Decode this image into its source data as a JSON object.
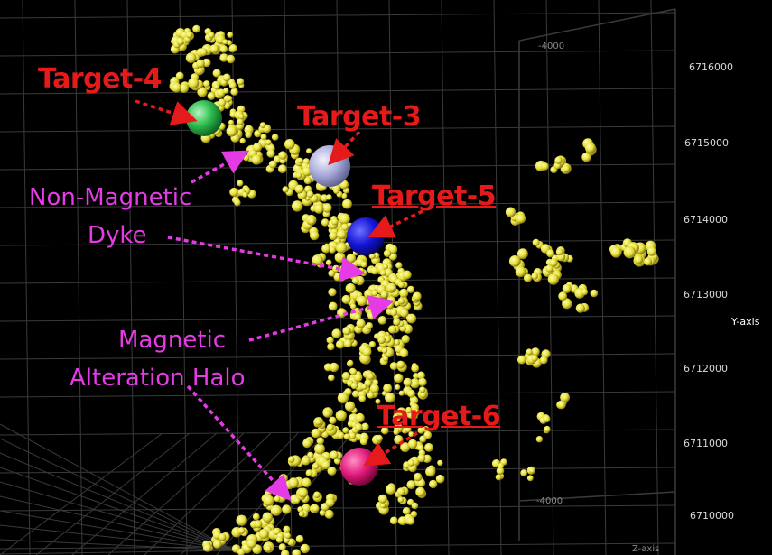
{
  "labels": {
    "target4": "Target-4",
    "target3": "Target-3",
    "target5": "Target-5",
    "target6": "Target-6",
    "dyke_line1": "Non-Magnetic",
    "dyke_line2": "Dyke",
    "halo_line1": "Magnetic",
    "halo_line2": "Alteration Halo"
  },
  "axis": {
    "name": "Y-axis",
    "ticks": [
      "6716000",
      "6715000",
      "6714000",
      "6713000",
      "6712000",
      "6711000",
      "6710000"
    ],
    "depth_top": "-4000",
    "depth_bottom": "-4000",
    "z_name": "Z-axis"
  },
  "colors": {
    "background": "#000000",
    "grid": "#3a3a3a",
    "anomaly_points": "#e6e23a",
    "target_label": "#e51a1a",
    "geology_label": "#e43be4",
    "target4_sphere": "#2fbf4f",
    "target3_sphere": "#a7a9d9",
    "target5_sphere": "#1414d6",
    "target6_sphere": "#e0187a"
  }
}
